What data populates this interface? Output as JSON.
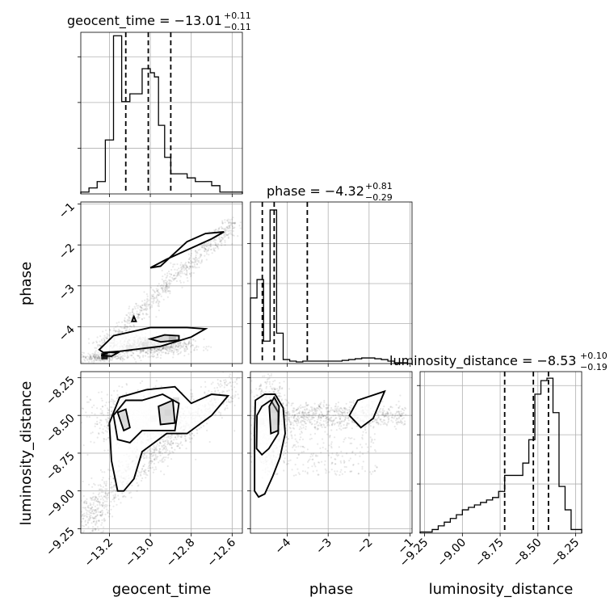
{
  "chart_data": {
    "type": "corner",
    "parameters": [
      {
        "name": "geocent_time",
        "label": "geocent_time",
        "title_main": "geocent_time = −13.01",
        "title_sup": "+0.11",
        "title_sub": "−0.11",
        "range": [
          -13.34,
          -12.55
        ],
        "ticks": [
          -13.2,
          -13.0,
          -12.8,
          -12.6
        ],
        "tick_labels": [
          "−13.2",
          "−13.0",
          "−12.8",
          "−12.6"
        ],
        "quantiles": [
          -13.12,
          -13.01,
          -12.9
        ],
        "hist_edges": [
          -13.34,
          -13.3,
          -13.26,
          -13.22,
          -13.18,
          -13.14,
          -13.12,
          -13.1,
          -13.07,
          -13.04,
          -13.02,
          -13.0,
          -12.98,
          -12.96,
          -12.93,
          -12.9,
          -12.86,
          -12.82,
          -12.78,
          -12.74,
          -12.7,
          -12.66,
          -12.62,
          -12.58,
          -12.55
        ],
        "hist_values": [
          0.4,
          1.3,
          2.7,
          11.8,
          34.6,
          20.2,
          20.2,
          21.9,
          21.9,
          27.4,
          27.4,
          26.5,
          25.6,
          15.0,
          8.0,
          4.4,
          4.4,
          3.5,
          2.7,
          2.7,
          1.8,
          0.4,
          0.4,
          0.4
        ],
        "hist_max": 35
      },
      {
        "name": "phase",
        "label": "phase",
        "title_main": "phase = −4.32",
        "title_sup": "+0.81",
        "title_sub": "−0.29",
        "range": [
          -4.9,
          -0.95
        ],
        "ticks": [
          -4,
          -3,
          -2,
          -1
        ],
        "tick_labels": [
          "−4",
          "−3",
          "−2",
          "−1"
        ],
        "quantiles": [
          -4.61,
          -4.32,
          -3.51
        ],
        "hist_edges": [
          -4.9,
          -4.74,
          -4.58,
          -4.42,
          -4.26,
          -4.1,
          -3.94,
          -3.78,
          -3.62,
          -3.46,
          -3.3,
          -3.14,
          -2.98,
          -2.82,
          -2.66,
          -2.5,
          -2.34,
          -2.18,
          -2.02,
          -1.86,
          -1.7,
          -1.54,
          -1.38,
          -1.22,
          -1.06,
          -0.95
        ],
        "hist_values": [
          8.2,
          10.5,
          2.8,
          19.2,
          3.8,
          0.5,
          0.3,
          0.2,
          0.3,
          0.3,
          0.3,
          0.3,
          0.3,
          0.3,
          0.4,
          0.5,
          0.6,
          0.7,
          0.7,
          0.6,
          0.5,
          0.3,
          0.1,
          0.1,
          0.0
        ],
        "hist_max": 20
      },
      {
        "name": "luminosity_distance",
        "label": "luminosity_distance",
        "title_main": "luminosity_distance = −8.53",
        "title_sup": "+0.10",
        "title_sub": "−0.19",
        "range": [
          -9.28,
          -8.21
        ],
        "ticks": [
          -9.25,
          -9.0,
          -8.75,
          -8.5,
          -8.25
        ],
        "tick_labels": [
          "−9.25",
          "−9.00",
          "−8.75",
          "−8.50",
          "−8.25"
        ],
        "quantiles": [
          -8.72,
          -8.53,
          -8.43
        ],
        "hist_edges": [
          -9.28,
          -9.24,
          -9.2,
          -9.16,
          -9.12,
          -9.08,
          -9.04,
          -9.0,
          -8.96,
          -8.92,
          -8.88,
          -8.84,
          -8.8,
          -8.76,
          -8.72,
          -8.68,
          -8.64,
          -8.6,
          -8.56,
          -8.52,
          -8.48,
          -8.44,
          -8.4,
          -8.36,
          -8.32,
          -8.28,
          -8.21
        ],
        "hist_values": [
          0.1,
          0.1,
          0.3,
          0.6,
          0.9,
          1.2,
          1.5,
          1.9,
          2.1,
          2.3,
          2.5,
          2.7,
          2.9,
          3.4,
          4.7,
          4.7,
          4.7,
          5.7,
          7.6,
          11.3,
          12.4,
          12.6,
          9.8,
          3.8,
          1.9,
          0.3
        ],
        "hist_max": 13
      }
    ]
  }
}
